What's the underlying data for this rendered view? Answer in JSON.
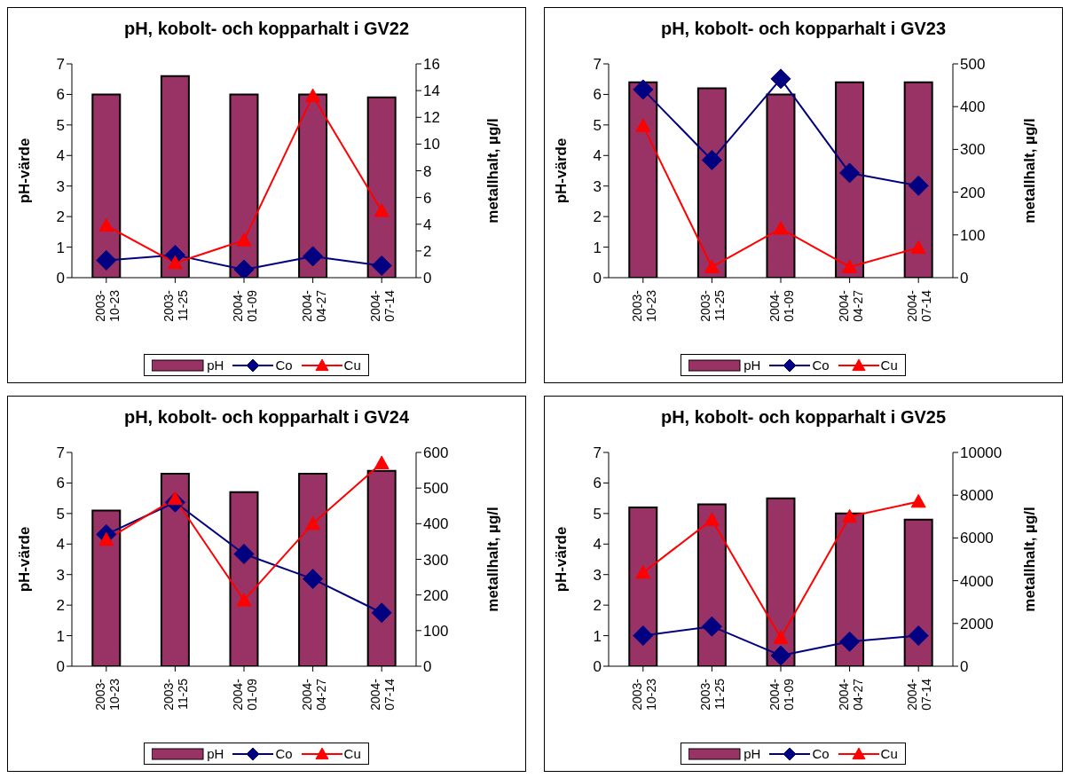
{
  "chart_data": [
    {
      "type": "bar",
      "title": "pH, kobolt- och kopparhalt i GV22",
      "categories": [
        "2003-10-23",
        "2003-11-25",
        "2004-01-09",
        "2004-04-27",
        "2004-07-14"
      ],
      "ylabel": "pH-värde",
      "y2label": "metallhalt, µg/l",
      "ylim": [
        0,
        7
      ],
      "yticks": [
        0,
        1,
        2,
        3,
        4,
        5,
        6,
        7
      ],
      "y2lim": [
        0,
        16
      ],
      "y2ticks": [
        0,
        2,
        4,
        6,
        8,
        10,
        12,
        14,
        16
      ],
      "legend": "bottom",
      "grid": false,
      "series": [
        {
          "name": "pH",
          "color": "#993366",
          "values": [
            6.0,
            6.6,
            6.0,
            6.0,
            5.9
          ]
        },
        {
          "name": "Co",
          "type": "line",
          "axis": "y2",
          "marker": "diamond",
          "color": "#000080",
          "values": [
            1.3,
            1.7,
            0.6,
            1.6,
            0.9
          ]
        },
        {
          "name": "Cu",
          "type": "line",
          "axis": "y2",
          "marker": "triangle",
          "color": "#ff0000",
          "values": [
            3.9,
            1.1,
            2.8,
            13.6,
            5.0
          ]
        }
      ]
    },
    {
      "type": "bar",
      "title": "pH, kobolt- och kopparhalt i GV23",
      "categories": [
        "2003-10-23",
        "2003-11-25",
        "2004-01-09",
        "2004-04-27",
        "2004-07-14"
      ],
      "ylabel": "pH-värde",
      "y2label": "metallhalt, µg/l",
      "ylim": [
        0,
        7
      ],
      "yticks": [
        0,
        1,
        2,
        3,
        4,
        5,
        6,
        7
      ],
      "y2lim": [
        0,
        500
      ],
      "y2ticks": [
        0,
        100,
        200,
        300,
        400,
        500
      ],
      "legend": "bottom",
      "grid": false,
      "series": [
        {
          "name": "pH",
          "color": "#993366",
          "values": [
            6.4,
            6.2,
            6.0,
            6.4,
            6.4
          ]
        },
        {
          "name": "Co",
          "type": "line",
          "axis": "y2",
          "marker": "diamond",
          "color": "#000080",
          "values": [
            440,
            275,
            465,
            245,
            215
          ]
        },
        {
          "name": "Cu",
          "type": "line",
          "axis": "y2",
          "marker": "triangle",
          "color": "#ff0000",
          "values": [
            355,
            25,
            115,
            25,
            70
          ]
        }
      ]
    },
    {
      "type": "bar",
      "title": "pH, kobolt- och kopparhalt i GV24",
      "categories": [
        "2003-10-23",
        "2003-11-25",
        "2004-01-09",
        "2004-04-27",
        "2004-07-14"
      ],
      "ylabel": "pH-värde",
      "y2label": "metallhalt, µg/l",
      "ylim": [
        0,
        7
      ],
      "yticks": [
        0,
        1,
        2,
        3,
        4,
        5,
        6,
        7
      ],
      "y2lim": [
        0,
        600
      ],
      "y2ticks": [
        0,
        100,
        200,
        300,
        400,
        500,
        600
      ],
      "legend": "bottom",
      "grid": false,
      "series": [
        {
          "name": "pH",
          "color": "#993366",
          "values": [
            5.1,
            6.3,
            5.7,
            6.3,
            6.4
          ]
        },
        {
          "name": "Co",
          "type": "line",
          "axis": "y2",
          "marker": "diamond",
          "color": "#000080",
          "values": [
            370,
            460,
            315,
            245,
            150
          ]
        },
        {
          "name": "Cu",
          "type": "line",
          "axis": "y2",
          "marker": "triangle",
          "color": "#ff0000",
          "values": [
            355,
            470,
            185,
            400,
            570
          ]
        }
      ]
    },
    {
      "type": "bar",
      "title": "pH, kobolt- och kopparhalt i GV25",
      "categories": [
        "2003-10-23",
        "2003-11-25",
        "2004-01-09",
        "2004-04-27",
        "2004-07-14"
      ],
      "ylabel": "pH-värde",
      "y2label": "metallhalt, µg/l",
      "ylim": [
        0,
        7
      ],
      "yticks": [
        0,
        1,
        2,
        3,
        4,
        5,
        6,
        7
      ],
      "y2lim": [
        0,
        10000
      ],
      "y2ticks": [
        0,
        2000,
        4000,
        6000,
        8000,
        10000
      ],
      "legend": "bottom",
      "grid": false,
      "series": [
        {
          "name": "pH",
          "color": "#993366",
          "values": [
            5.2,
            5.3,
            5.5,
            5.0,
            4.8
          ]
        },
        {
          "name": "Co",
          "type": "line",
          "axis": "y2",
          "marker": "diamond",
          "color": "#000080",
          "values": [
            1430,
            1860,
            500,
            1150,
            1430
          ]
        },
        {
          "name": "Cu",
          "type": "line",
          "axis": "y2",
          "marker": "triangle",
          "color": "#ff0000",
          "values": [
            4380,
            6850,
            1330,
            7000,
            7700
          ]
        }
      ]
    }
  ]
}
